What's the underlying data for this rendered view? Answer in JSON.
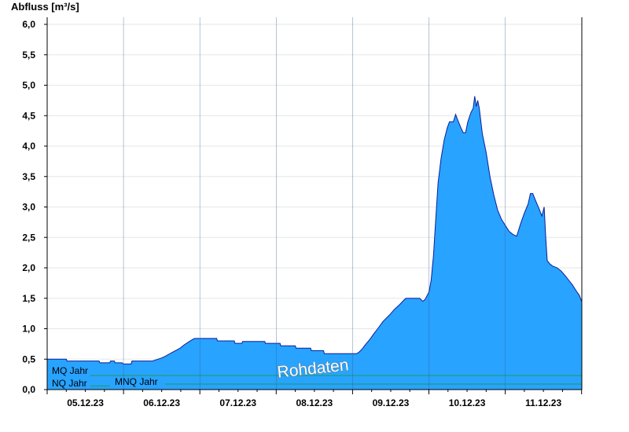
{
  "colors": {
    "area_fill": "#28a3ff",
    "area_stroke": "#0a1f9a",
    "ref_line": "#1e9e52",
    "grid": "#e6e6e6",
    "watermark": "#ffffff"
  },
  "chart_data": {
    "type": "area",
    "ylabel": "Abfluss [m³/s]",
    "ylim": [
      0,
      6.1
    ],
    "yticks": [
      "0,0",
      "0,5",
      "1,0",
      "1,5",
      "2,0",
      "2,5",
      "3,0",
      "3,5",
      "4,0",
      "4,5",
      "5,0",
      "5,5",
      "6,0"
    ],
    "ytick_values": [
      0,
      0.5,
      1,
      1.5,
      2,
      2.5,
      3,
      3.5,
      4,
      4.5,
      5,
      5.5,
      6
    ],
    "xlabels": [
      "05.12.23",
      "06.12.23",
      "07.12.23",
      "08.12.23",
      "09.12.23",
      "10.12.23",
      "11.12.23"
    ],
    "xlim_days": [
      0,
      7
    ],
    "grid": true,
    "reference_lines": [
      {
        "name": "MQ Jahr",
        "value": 0.23
      },
      {
        "name": "NQ Jahr",
        "value": 0.06
      },
      {
        "name": "MNQ Jahr",
        "value": 0.09
      }
    ],
    "watermark": "Rohdaten",
    "series": [
      {
        "points": [
          [
            0.0,
            0.5
          ],
          [
            0.25,
            0.5
          ],
          [
            0.26,
            0.47
          ],
          [
            0.45,
            0.47
          ],
          [
            0.68,
            0.47
          ],
          [
            0.69,
            0.44
          ],
          [
            0.82,
            0.44
          ],
          [
            0.83,
            0.47
          ],
          [
            0.88,
            0.47
          ],
          [
            0.89,
            0.44
          ],
          [
            0.98,
            0.44
          ],
          [
            1.0,
            0.42
          ],
          [
            1.1,
            0.42
          ],
          [
            1.11,
            0.47
          ],
          [
            1.38,
            0.47
          ],
          [
            1.45,
            0.5
          ],
          [
            1.5,
            0.52
          ],
          [
            1.55,
            0.55
          ],
          [
            1.62,
            0.6
          ],
          [
            1.68,
            0.64
          ],
          [
            1.74,
            0.68
          ],
          [
            1.8,
            0.74
          ],
          [
            1.85,
            0.78
          ],
          [
            1.9,
            0.82
          ],
          [
            1.93,
            0.84
          ],
          [
            2.22,
            0.84
          ],
          [
            2.23,
            0.8
          ],
          [
            2.45,
            0.8
          ],
          [
            2.46,
            0.76
          ],
          [
            2.55,
            0.76
          ],
          [
            2.56,
            0.79
          ],
          [
            2.85,
            0.79
          ],
          [
            2.86,
            0.76
          ],
          [
            3.05,
            0.76
          ],
          [
            3.06,
            0.72
          ],
          [
            3.25,
            0.72
          ],
          [
            3.26,
            0.68
          ],
          [
            3.45,
            0.68
          ],
          [
            3.46,
            0.64
          ],
          [
            3.62,
            0.64
          ],
          [
            3.63,
            0.59
          ],
          [
            4.05,
            0.59
          ],
          [
            4.08,
            0.61
          ],
          [
            4.12,
            0.66
          ],
          [
            4.17,
            0.74
          ],
          [
            4.23,
            0.83
          ],
          [
            4.28,
            0.92
          ],
          [
            4.33,
            1.0
          ],
          [
            4.4,
            1.12
          ],
          [
            4.48,
            1.22
          ],
          [
            4.55,
            1.32
          ],
          [
            4.62,
            1.4
          ],
          [
            4.68,
            1.48
          ],
          [
            4.7,
            1.5
          ],
          [
            4.88,
            1.5
          ],
          [
            4.92,
            1.45
          ],
          [
            4.95,
            1.48
          ],
          [
            5.0,
            1.6
          ],
          [
            5.03,
            1.8
          ],
          [
            5.06,
            2.2
          ],
          [
            5.09,
            2.8
          ],
          [
            5.12,
            3.4
          ],
          [
            5.16,
            3.8
          ],
          [
            5.2,
            4.1
          ],
          [
            5.24,
            4.3
          ],
          [
            5.27,
            4.4
          ],
          [
            5.32,
            4.4
          ],
          [
            5.35,
            4.52
          ],
          [
            5.38,
            4.42
          ],
          [
            5.42,
            4.3
          ],
          [
            5.45,
            4.22
          ],
          [
            5.48,
            4.22
          ],
          [
            5.51,
            4.4
          ],
          [
            5.55,
            4.55
          ],
          [
            5.58,
            4.62
          ],
          [
            5.6,
            4.82
          ],
          [
            5.62,
            4.65
          ],
          [
            5.64,
            4.75
          ],
          [
            5.66,
            4.62
          ],
          [
            5.7,
            4.2
          ],
          [
            5.75,
            3.9
          ],
          [
            5.8,
            3.5
          ],
          [
            5.85,
            3.2
          ],
          [
            5.9,
            2.95
          ],
          [
            5.95,
            2.8
          ],
          [
            6.0,
            2.7
          ],
          [
            6.05,
            2.6
          ],
          [
            6.1,
            2.55
          ],
          [
            6.15,
            2.52
          ],
          [
            6.2,
            2.72
          ],
          [
            6.25,
            2.9
          ],
          [
            6.3,
            3.05
          ],
          [
            6.33,
            3.22
          ],
          [
            6.36,
            3.22
          ],
          [
            6.4,
            3.1
          ],
          [
            6.45,
            2.95
          ],
          [
            6.48,
            2.85
          ],
          [
            6.51,
            3.0
          ],
          [
            6.53,
            2.5
          ],
          [
            6.55,
            2.12
          ],
          [
            6.58,
            2.07
          ],
          [
            6.62,
            2.03
          ],
          [
            6.68,
            2.0
          ],
          [
            6.73,
            1.95
          ],
          [
            6.78,
            1.88
          ],
          [
            6.83,
            1.8
          ],
          [
            6.88,
            1.72
          ],
          [
            6.93,
            1.62
          ],
          [
            6.97,
            1.55
          ],
          [
            7.0,
            1.45
          ]
        ]
      }
    ]
  }
}
